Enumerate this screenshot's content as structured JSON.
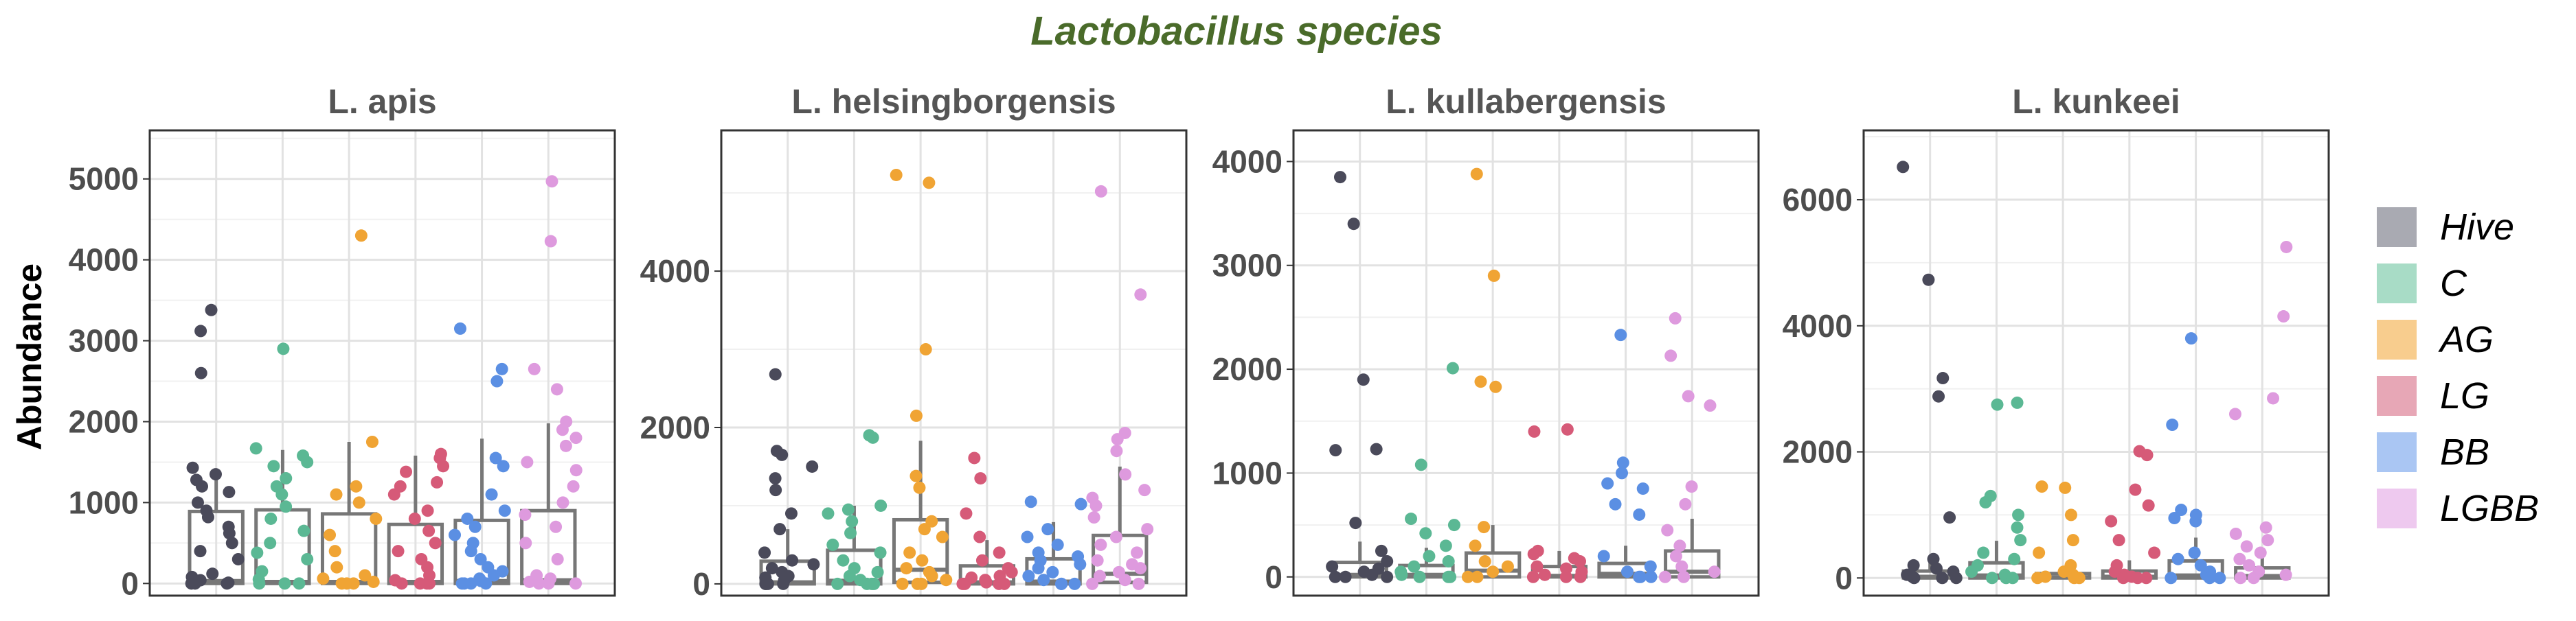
{
  "chart_data": {
    "type": "scatter",
    "title": "Lactobacillus species",
    "title_color": "#4a6b2a",
    "ylabel": "Abundance",
    "groups": [
      "Hive",
      "C",
      "AG",
      "LG",
      "BB",
      "LGBB"
    ],
    "group_colors": [
      "#4a4a5a",
      "#5bb894",
      "#f0a434",
      "#d65a78",
      "#5b8fe3",
      "#de9ade"
    ],
    "legend_colors": [
      "#a9aab2",
      "#a8dcc6",
      "#f8cd8e",
      "#e7a7b6",
      "#aac6f3",
      "#eec9ef"
    ],
    "legend_placement": "right",
    "grid": true,
    "panels": [
      {
        "name": "L. apis",
        "ylim": [
          -150,
          5600
        ],
        "yticks": [
          0,
          1000,
          2000,
          3000,
          4000,
          5000
        ],
        "boxes": [
          {
            "q1": 0,
            "median": 30,
            "q3": 890,
            "whisker_low": 0,
            "whisker_high": 1420
          },
          {
            "q1": 0,
            "median": 20,
            "q3": 910,
            "whisker_low": 0,
            "whisker_high": 1650
          },
          {
            "q1": 0,
            "median": 20,
            "q3": 860,
            "whisker_low": 0,
            "whisker_high": 1750
          },
          {
            "q1": 0,
            "median": 20,
            "q3": 730,
            "whisker_low": 0,
            "whisker_high": 1580
          },
          {
            "q1": 0,
            "median": 30,
            "q3": 780,
            "whisker_low": 0,
            "whisker_high": 1790
          },
          {
            "q1": 0,
            "median": 40,
            "q3": 900,
            "whisker_low": 0,
            "whisker_high": 1980
          }
        ],
        "points": [
          [
            3380,
            3120,
            2600,
            1430,
            1350,
            1280,
            1200,
            1130,
            1000,
            900,
            820,
            700,
            620,
            500,
            400,
            300,
            120,
            80,
            40,
            10,
            0,
            0,
            0
          ],
          [
            2900,
            1670,
            1580,
            1500,
            1450,
            1300,
            1200,
            1100,
            950,
            800,
            650,
            500,
            380,
            300,
            150,
            50,
            0,
            0,
            0
          ],
          [
            4300,
            1750,
            1200,
            1100,
            1000,
            800,
            600,
            400,
            200,
            100,
            60,
            20,
            0,
            0,
            0
          ],
          [
            1600,
            1550,
            1450,
            1380,
            1250,
            1200,
            1100,
            900,
            800,
            650,
            500,
            400,
            300,
            200,
            100,
            40,
            0,
            0,
            0,
            0
          ],
          [
            3150,
            2650,
            2500,
            1550,
            1450,
            1100,
            900,
            800,
            700,
            600,
            500,
            400,
            300,
            200,
            150,
            100,
            60,
            30,
            0,
            0,
            0,
            0
          ],
          [
            4970,
            4230,
            2650,
            2400,
            2000,
            1900,
            1800,
            1700,
            1500,
            1400,
            1200,
            1000,
            850,
            700,
            500,
            300,
            100,
            60,
            20,
            0,
            0,
            0
          ]
        ]
      },
      {
        "name": "L. helsingborgensis",
        "ylim": [
          -150,
          5800
        ],
        "yticks": [
          0,
          2000,
          4000
        ],
        "boxes": [
          {
            "q1": 0,
            "median": 20,
            "q3": 290,
            "whisker_low": 0,
            "whisker_high": 700
          },
          {
            "q1": 0,
            "median": 40,
            "q3": 430,
            "whisker_low": 0,
            "whisker_high": 1000
          },
          {
            "q1": 20,
            "median": 180,
            "q3": 820,
            "whisker_low": 0,
            "whisker_high": 1830
          },
          {
            "q1": 0,
            "median": 20,
            "q3": 230,
            "whisker_low": 0,
            "whisker_high": 560
          },
          {
            "q1": 0,
            "median": 30,
            "q3": 320,
            "whisker_low": 0,
            "whisker_high": 790
          },
          {
            "q1": 20,
            "median": 130,
            "q3": 620,
            "whisker_low": 0,
            "whisker_high": 1500
          }
        ],
        "points": [
          [
            2680,
            1700,
            1650,
            1500,
            1350,
            1200,
            900,
            700,
            400,
            300,
            250,
            200,
            150,
            100,
            80,
            40,
            0,
            0,
            0,
            0
          ],
          [
            1900,
            1870,
            1000,
            950,
            900,
            800,
            650,
            500,
            400,
            300,
            200,
            150,
            100,
            50,
            0,
            0,
            0,
            0
          ],
          [
            5230,
            5130,
            3000,
            2150,
            1380,
            1230,
            800,
            700,
            600,
            400,
            300,
            200,
            150,
            100,
            50,
            0,
            0,
            0
          ],
          [
            1610,
            1350,
            900,
            600,
            400,
            300,
            200,
            150,
            100,
            80,
            50,
            20,
            0,
            0,
            0,
            0
          ],
          [
            1050,
            1020,
            700,
            600,
            500,
            400,
            350,
            300,
            250,
            200,
            150,
            100,
            50,
            0,
            0,
            0
          ],
          [
            5020,
            3700,
            1930,
            1850,
            1700,
            1400,
            1200,
            1100,
            1000,
            850,
            700,
            600,
            500,
            400,
            300,
            250,
            200,
            150,
            100,
            50,
            0,
            0
          ]
        ]
      },
      {
        "name": "L. kullabergensis",
        "ylim": [
          -180,
          4300
        ],
        "yticks": [
          0,
          1000,
          2000,
          3000,
          4000
        ],
        "boxes": [
          {
            "q1": 0,
            "median": 20,
            "q3": 140,
            "whisker_low": 0,
            "whisker_high": 340
          },
          {
            "q1": 0,
            "median": 20,
            "q3": 110,
            "whisker_low": 0,
            "whisker_high": 280
          },
          {
            "q1": 0,
            "median": 60,
            "q3": 230,
            "whisker_low": 0,
            "whisker_high": 500
          },
          {
            "q1": 0,
            "median": 10,
            "q3": 100,
            "whisker_low": 0,
            "whisker_high": 250
          },
          {
            "q1": 0,
            "median": 30,
            "q3": 130,
            "whisker_low": 0,
            "whisker_high": 300
          },
          {
            "q1": 0,
            "median": 50,
            "q3": 250,
            "whisker_low": 0,
            "whisker_high": 560
          }
        ],
        "points": [
          [
            3850,
            3400,
            1900,
            1230,
            1220,
            520,
            250,
            150,
            100,
            80,
            50,
            20,
            0,
            0,
            0
          ],
          [
            2010,
            1080,
            560,
            500,
            420,
            300,
            200,
            150,
            100,
            50,
            20,
            0,
            0,
            0
          ],
          [
            3880,
            2900,
            1880,
            1830,
            480,
            300,
            150,
            100,
            50,
            0,
            0
          ],
          [
            1420,
            1400,
            250,
            220,
            180,
            150,
            100,
            80,
            50,
            20,
            0,
            0,
            0
          ],
          [
            2330,
            1100,
            1000,
            900,
            850,
            700,
            600,
            200,
            100,
            50,
            0,
            0,
            0
          ],
          [
            2490,
            2130,
            1740,
            1650,
            870,
            700,
            450,
            300,
            200,
            100,
            50,
            0,
            0
          ]
        ]
      },
      {
        "name": "L. kunkeei",
        "ylim": [
          -280,
          7100
        ],
        "yticks": [
          0,
          2000,
          4000,
          6000
        ],
        "boxes": [
          {
            "q1": 0,
            "median": 20,
            "q3": 110,
            "whisker_low": 0,
            "whisker_high": 280
          },
          {
            "q1": 0,
            "median": 40,
            "q3": 240,
            "whisker_low": 0,
            "whisker_high": 590
          },
          {
            "q1": 0,
            "median": 10,
            "q3": 70,
            "whisker_low": 0,
            "whisker_high": 150
          },
          {
            "q1": 0,
            "median": 20,
            "q3": 110,
            "whisker_low": 0,
            "whisker_high": 280
          },
          {
            "q1": 0,
            "median": 40,
            "q3": 270,
            "whisker_low": 0,
            "whisker_high": 640
          },
          {
            "q1": 0,
            "median": 30,
            "q3": 160,
            "whisker_low": 0,
            "whisker_high": 400
          }
        ],
        "points": [
          [
            6520,
            4730,
            3170,
            2880,
            960,
            300,
            200,
            150,
            100,
            50,
            20,
            0,
            0,
            0
          ],
          [
            2780,
            2750,
            1300,
            1200,
            1000,
            800,
            600,
            400,
            300,
            200,
            100,
            50,
            0,
            0,
            0
          ],
          [
            1450,
            1430,
            1000,
            600,
            400,
            200,
            100,
            50,
            20,
            0,
            0,
            0
          ],
          [
            2010,
            1950,
            1400,
            1150,
            900,
            600,
            400,
            200,
            100,
            50,
            20,
            0,
            0,
            0
          ],
          [
            3800,
            2430,
            1080,
            1000,
            950,
            900,
            400,
            300,
            200,
            100,
            50,
            0,
            0,
            0
          ],
          [
            5250,
            4150,
            2850,
            2600,
            800,
            700,
            600,
            500,
            400,
            300,
            200,
            100,
            50,
            0,
            0
          ]
        ]
      }
    ]
  }
}
